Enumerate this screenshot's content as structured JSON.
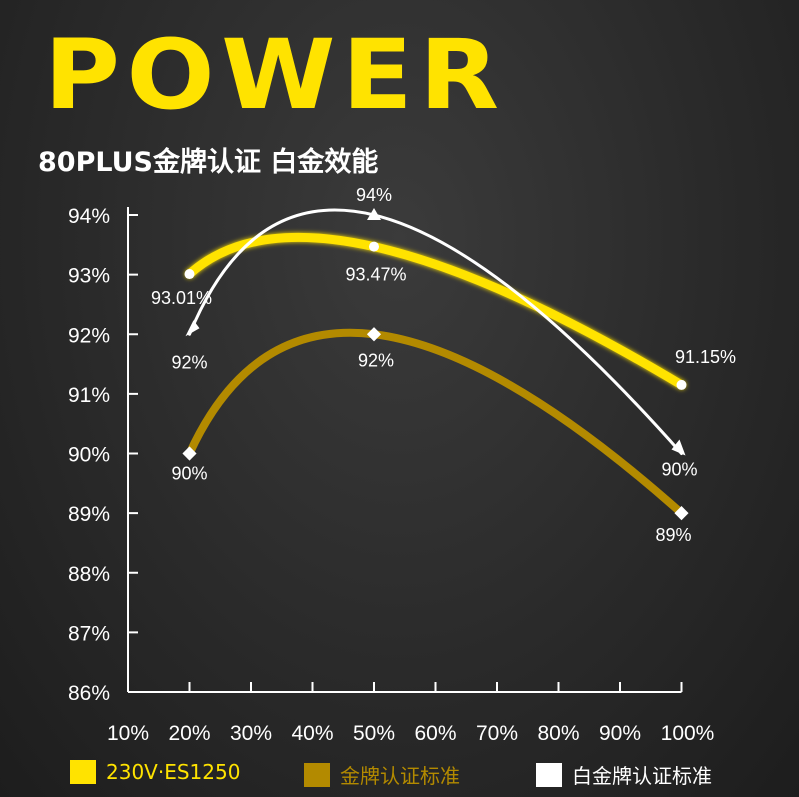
{
  "header": {
    "brand": "POWER",
    "subtitle": "80PLUS金牌认证 白金效能"
  },
  "chart_data": {
    "type": "line",
    "categories": [
      "10%",
      "20%",
      "30%",
      "40%",
      "50%",
      "60%",
      "70%",
      "80%",
      "90%",
      "100%"
    ],
    "y_ticks": [
      "86%",
      "87%",
      "88%",
      "89%",
      "90%",
      "91%",
      "92%",
      "93%",
      "94%"
    ],
    "ylim": [
      86,
      94
    ],
    "series": [
      {
        "name": "230V·ES1250",
        "color": "#ffe300",
        "points": [
          {
            "x": "20%",
            "y": 93.01,
            "label": "93.01%"
          },
          {
            "x": "50%",
            "y": 93.47,
            "label": "93.47%"
          },
          {
            "x": "100%",
            "y": 91.15,
            "label": "91.15%"
          }
        ]
      },
      {
        "name": "金牌认证标准",
        "color": "#b38a00",
        "points": [
          {
            "x": "20%",
            "y": 90,
            "label": "90%"
          },
          {
            "x": "50%",
            "y": 92,
            "label": "92%"
          },
          {
            "x": "100%",
            "y": 89,
            "label": "89%"
          }
        ]
      },
      {
        "name": "白金牌认证标准",
        "color": "#ffffff",
        "points": [
          {
            "x": "20%",
            "y": 92,
            "label": "92%"
          },
          {
            "x": "50%",
            "y": 94,
            "label": "94%"
          },
          {
            "x": "100%",
            "y": 90,
            "label": "90%"
          }
        ]
      }
    ],
    "grid": false,
    "legend_position": "bottom"
  }
}
